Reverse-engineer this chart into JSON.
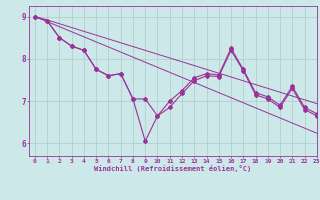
{
  "x": [
    0,
    1,
    2,
    3,
    4,
    5,
    6,
    7,
    8,
    9,
    10,
    11,
    12,
    13,
    14,
    15,
    16,
    17,
    18,
    19,
    20,
    21,
    22,
    23
  ],
  "line1": [
    9.0,
    8.9,
    8.5,
    8.3,
    8.2,
    7.75,
    7.6,
    7.65,
    7.05,
    7.05,
    6.65,
    7.0,
    7.25,
    7.55,
    7.65,
    7.62,
    8.25,
    7.75,
    7.2,
    7.1,
    6.9,
    7.35,
    6.85,
    6.7
  ],
  "line2": [
    9.0,
    8.9,
    8.5,
    8.3,
    8.2,
    7.75,
    7.6,
    7.65,
    7.05,
    6.05,
    6.65,
    6.85,
    7.18,
    7.48,
    7.6,
    7.58,
    8.2,
    7.72,
    7.15,
    7.05,
    6.85,
    7.3,
    6.8,
    6.65
  ],
  "trend1": [
    9.0,
    8.88,
    8.76,
    8.64,
    8.52,
    8.4,
    8.28,
    8.16,
    8.04,
    7.92,
    7.8,
    7.68,
    7.56,
    7.44,
    7.32,
    7.2,
    7.08,
    6.96,
    6.84,
    6.72,
    6.6,
    6.48,
    6.36,
    6.24
  ],
  "trend2": [
    9.0,
    8.92,
    8.83,
    8.74,
    8.65,
    8.56,
    8.47,
    8.38,
    8.29,
    8.2,
    8.11,
    8.02,
    7.93,
    7.84,
    7.75,
    7.66,
    7.57,
    7.48,
    7.39,
    7.3,
    7.21,
    7.12,
    7.03,
    6.94
  ],
  "line_color": "#993399",
  "bg_color": "#cce8e8",
  "grid_color": "#aacccc",
  "axis_color": "#993399",
  "xlabel": "Windchill (Refroidissement éolien,°C)",
  "xticks": [
    0,
    1,
    2,
    3,
    4,
    5,
    6,
    7,
    8,
    9,
    10,
    11,
    12,
    13,
    14,
    15,
    16,
    17,
    18,
    19,
    20,
    21,
    22,
    23
  ],
  "yticks": [
    6,
    7,
    8,
    9
  ],
  "xlim": [
    -0.5,
    23
  ],
  "ylim": [
    5.7,
    9.25
  ]
}
